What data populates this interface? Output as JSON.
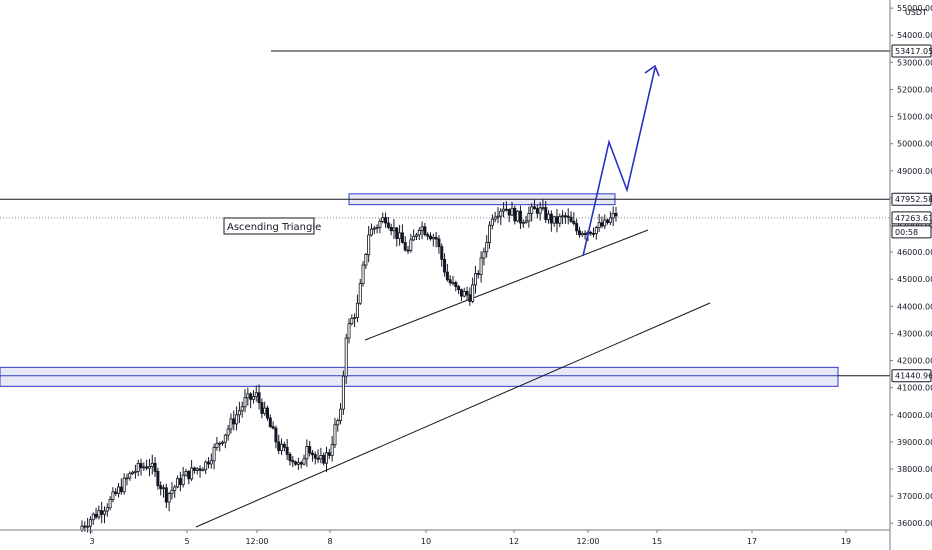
{
  "chart_data": {
    "type": "candlestick",
    "currency": "USDT",
    "ylim": [
      35750,
      55300
    ],
    "yticks": [
      36000,
      37000,
      38000,
      39000,
      40000,
      41000,
      42000,
      43000,
      44000,
      45000,
      46000,
      47000,
      48000,
      49000,
      50000,
      51000,
      52000,
      53000,
      54000,
      55000
    ],
    "ytick_labels": [
      "36000.00",
      "37000.00",
      "38000.00",
      "39000.00",
      "40000.00",
      "41000.00",
      "42000.00",
      "43000.00",
      "44000.00",
      "45000.00",
      "46000.00",
      "47000.00",
      "48000.00",
      "49000.00",
      "50000.00",
      "51000.00",
      "52000.00",
      "53000.00",
      "54000.00",
      "55000.00"
    ],
    "xtick_labels": [
      "3",
      "5",
      "12:00",
      "8",
      "10",
      "12",
      "12:00",
      "15",
      "17",
      "19"
    ],
    "price_badges": [
      {
        "label": "53417.05",
        "value": 53417.05,
        "style": "outline"
      },
      {
        "label": "47952.58",
        "value": 47952.58,
        "style": "outline"
      },
      {
        "label": "47263.61",
        "value": 47263.61,
        "style": "outline"
      },
      {
        "label": "00:58",
        "value": null,
        "style": "outline"
      },
      {
        "label": "41440.96",
        "value": 41440.96,
        "style": "outline"
      }
    ],
    "annotation": "Ascending Triangle",
    "horizontal_levels": [
      53417.05,
      47952.58
    ],
    "zones": [
      {
        "low": 47750,
        "high": 48150
      },
      {
        "low": 41050,
        "high": 41750
      }
    ],
    "candles": {
      "start_close": 35900,
      "closes_key_points": [
        [
          0,
          35900
        ],
        [
          10,
          36800
        ],
        [
          18,
          37900
        ],
        [
          24,
          38200
        ],
        [
          30,
          37000
        ],
        [
          36,
          37700
        ],
        [
          44,
          38200
        ],
        [
          52,
          39500
        ],
        [
          58,
          40500
        ],
        [
          62,
          40700
        ],
        [
          66,
          39800
        ],
        [
          70,
          38800
        ],
        [
          74,
          38500
        ],
        [
          78,
          38000
        ],
        [
          80,
          39000
        ],
        [
          84,
          38200
        ],
        [
          88,
          38600
        ],
        [
          90,
          39500
        ],
        [
          92,
          40000
        ],
        [
          94,
          43000
        ],
        [
          98,
          44000
        ],
        [
          102,
          46700
        ],
        [
          108,
          47300
        ],
        [
          116,
          46000
        ],
        [
          120,
          47000
        ],
        [
          126,
          46500
        ],
        [
          130,
          45000
        ],
        [
          134,
          44500
        ],
        [
          138,
          44400
        ],
        [
          142,
          45600
        ],
        [
          146,
          47400
        ],
        [
          150,
          47700
        ],
        [
          156,
          47200
        ],
        [
          162,
          47600
        ],
        [
          168,
          47100
        ],
        [
          172,
          47300
        ],
        [
          176,
          46800
        ],
        [
          180,
          46800
        ],
        [
          186,
          47000
        ],
        [
          190,
          47400
        ]
      ]
    },
    "colors": {
      "candle": "#131722",
      "zone_fill": "#e8e9f7",
      "zone_stroke": "#2f39c8",
      "projection": "#2931c4",
      "trendline": "#131722",
      "axis_text": "#131722"
    }
  }
}
